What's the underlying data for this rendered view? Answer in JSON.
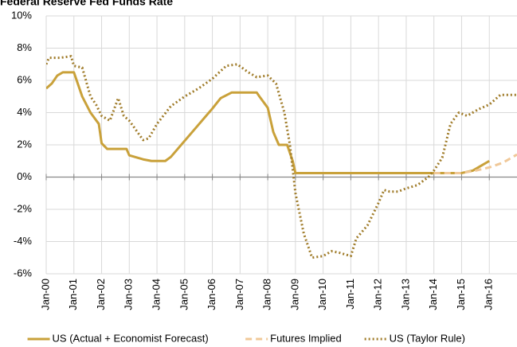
{
  "chart_data": {
    "type": "line",
    "title": "Federal Reserve Fed Funds Rate",
    "xlim": [
      2000,
      2017
    ],
    "ylim": [
      -6,
      10
    ],
    "xticks": [
      {
        "value": 2000,
        "label": "Jan-00"
      },
      {
        "value": 2001,
        "label": "Jan-01"
      },
      {
        "value": 2002,
        "label": "Jan-02"
      },
      {
        "value": 2003,
        "label": "Jan-03"
      },
      {
        "value": 2004,
        "label": "Jan-04"
      },
      {
        "value": 2005,
        "label": "Jan-05"
      },
      {
        "value": 2006,
        "label": "Jan-06"
      },
      {
        "value": 2007,
        "label": "Jan-07"
      },
      {
        "value": 2008,
        "label": "Jan-08"
      },
      {
        "value": 2009,
        "label": "Jan-09"
      },
      {
        "value": 2010,
        "label": "Jan-10"
      },
      {
        "value": 2011,
        "label": "Jan-11"
      },
      {
        "value": 2012,
        "label": "Jan-12"
      },
      {
        "value": 2013,
        "label": "Jan-13"
      },
      {
        "value": 2014,
        "label": "Jan-14"
      },
      {
        "value": 2015,
        "label": "Jan-15"
      },
      {
        "value": 2016,
        "label": "Jan-16"
      }
    ],
    "yticks": [
      {
        "value": -6,
        "label": "-6%"
      },
      {
        "value": -4,
        "label": "-4%"
      },
      {
        "value": -2,
        "label": "-2%"
      },
      {
        "value": 0,
        "label": "0%"
      },
      {
        "value": 2,
        "label": "2%"
      },
      {
        "value": 4,
        "label": "4%"
      },
      {
        "value": 6,
        "label": "6%"
      },
      {
        "value": 8,
        "label": "8%"
      },
      {
        "value": 10,
        "label": "10%"
      }
    ],
    "grid": true,
    "legend": "bottom",
    "series": [
      {
        "name": "US (Actual + Economist Forecast)",
        "color": "#c9a13a",
        "dash": "solid",
        "x": [
          2000.0,
          2000.2,
          2000.4,
          2000.6,
          2001.0,
          2001.3,
          2001.6,
          2001.9,
          2002.0,
          2002.2,
          2002.9,
          2003.0,
          2003.5,
          2003.8,
          2004.3,
          2004.5,
          2005.0,
          2005.5,
          2006.0,
          2006.3,
          2006.7,
          2007.6,
          2007.7,
          2008.0,
          2008.2,
          2008.4,
          2008.7,
          2008.9,
          2009.0,
          2015.0,
          2015.4,
          2015.7,
          2016.0
        ],
        "values": [
          5.5,
          5.8,
          6.3,
          6.5,
          6.5,
          5.0,
          4.0,
          3.3,
          2.1,
          1.75,
          1.75,
          1.35,
          1.1,
          1.0,
          1.0,
          1.25,
          2.25,
          3.25,
          4.25,
          4.9,
          5.25,
          5.25,
          5.0,
          4.3,
          2.8,
          2.0,
          2.0,
          1.0,
          0.25,
          0.25,
          0.4,
          0.7,
          1.0
        ]
      },
      {
        "name": "Futures Implied",
        "color": "#f0c898",
        "dash": "dashed",
        "x": [
          2014.0,
          2015.0,
          2015.5,
          2016.0,
          2016.5,
          2017.0
        ],
        "values": [
          0.25,
          0.25,
          0.4,
          0.6,
          0.9,
          1.4
        ]
      },
      {
        "name": "US (Taylor Rule)",
        "color": "#a07c2a",
        "dash": "dotted",
        "x": [
          2000.0,
          2000.1,
          2000.5,
          2000.9,
          2001.0,
          2001.3,
          2001.6,
          2001.8,
          2002.0,
          2002.3,
          2002.6,
          2002.8,
          2003.0,
          2003.5,
          2003.7,
          2004.0,
          2004.5,
          2005.0,
          2005.5,
          2006.0,
          2006.5,
          2006.9,
          2007.3,
          2007.6,
          2008.0,
          2008.3,
          2008.6,
          2008.8,
          2009.0,
          2009.3,
          2009.6,
          2010.0,
          2010.3,
          2010.6,
          2011.0,
          2011.2,
          2011.6,
          2012.0,
          2012.2,
          2012.4,
          2012.7,
          2013.0,
          2013.4,
          2013.8,
          2014.0,
          2014.3,
          2014.6,
          2014.9,
          2015.2,
          2015.6,
          2016.0,
          2016.4,
          2017.0
        ],
        "values": [
          7.0,
          7.4,
          7.4,
          7.5,
          6.9,
          6.8,
          5.0,
          4.5,
          3.8,
          3.5,
          4.9,
          3.8,
          3.5,
          2.3,
          2.4,
          3.3,
          4.4,
          5.0,
          5.5,
          6.1,
          6.9,
          7.0,
          6.5,
          6.2,
          6.3,
          5.8,
          4.0,
          2.0,
          -1.0,
          -3.5,
          -5.0,
          -4.9,
          -4.6,
          -4.7,
          -4.9,
          -3.8,
          -3.0,
          -1.6,
          -0.8,
          -0.9,
          -0.9,
          -0.7,
          -0.5,
          0.0,
          0.4,
          1.2,
          3.3,
          4.0,
          3.8,
          4.2,
          4.5,
          5.1,
          5.1
        ]
      }
    ]
  }
}
